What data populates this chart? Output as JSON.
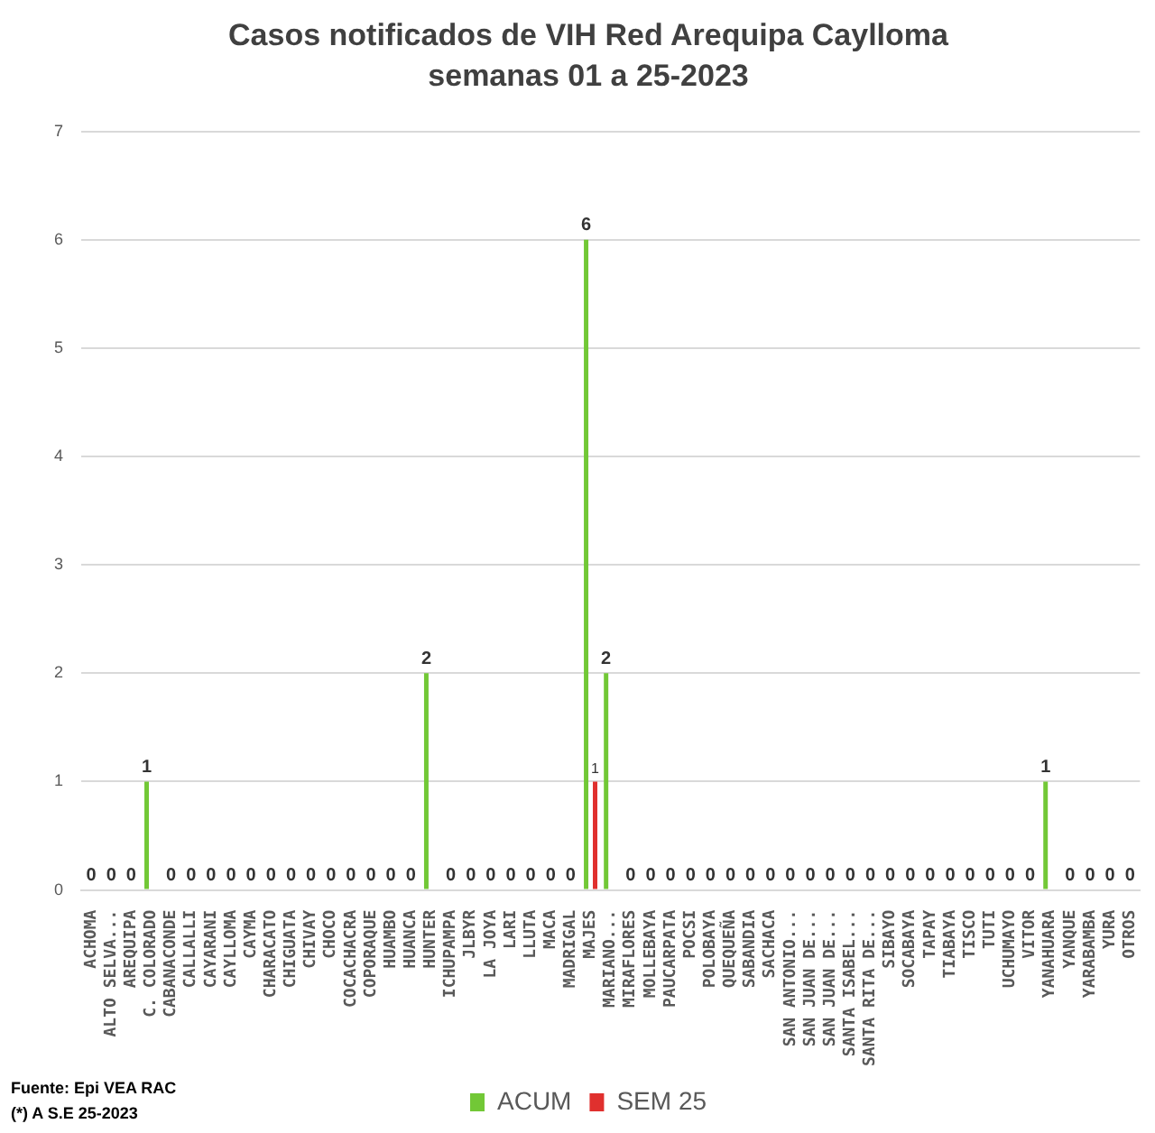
{
  "chart_data": {
    "type": "bar",
    "title": "Casos notificados de VIH Red Arequipa Caylloma",
    "subtitle": "semanas 01 a 25-2023",
    "categories": [
      "ACHOMA",
      "ALTO SELVA...",
      "AREQUIPA",
      "C. COLORADO",
      "CABANACONDE",
      "CALLALLI",
      "CAYARANI",
      "CAYLLOMA",
      "CAYMA",
      "CHARACATO",
      "CHIGUATA",
      "CHIVAY",
      "CHOCO",
      "COCACHACRA",
      "COPORAQUE",
      "HUAMBO",
      "HUANCA",
      "HUNTER",
      "ICHUPAMPA",
      "JLBYR",
      "LA JOYA",
      "LARI",
      "LLUTA",
      "MACA",
      "MADRIGAL",
      "MAJES",
      "MARIANO...",
      "MIRAFLORES",
      "MOLLEBAYA",
      "PAUCARPATA",
      "POCSI",
      "POLOBAYA",
      "QUEQUEÑA",
      "SABANDIA",
      "SACHACA",
      "SAN ANTONIO...",
      "SAN JUAN DE...",
      "SAN JUAN DE...",
      "SANTA ISABEL...",
      "SANTA RITA DE...",
      "SIBAYO",
      "SOCABAYA",
      "TAPAY",
      "TIABAYA",
      "TISCO",
      "TUTI",
      "UCHUMAYO",
      "VITOR",
      "YANAHUARA",
      "YANQUE",
      "YARABAMBA",
      "YURA",
      "OTROS"
    ],
    "series": [
      {
        "name": "ACUM",
        "color": "#72c836",
        "values": [
          0,
          0,
          0,
          1,
          0,
          0,
          0,
          0,
          0,
          0,
          0,
          0,
          0,
          0,
          0,
          0,
          0,
          2,
          0,
          0,
          0,
          0,
          0,
          0,
          0,
          6,
          2,
          0,
          0,
          0,
          0,
          0,
          0,
          0,
          0,
          0,
          0,
          0,
          0,
          0,
          0,
          0,
          0,
          0,
          0,
          0,
          0,
          0,
          1,
          0,
          0,
          0,
          0
        ],
        "value_labels": [
          "0",
          "0",
          "0",
          "1",
          "0",
          "0",
          "0",
          "0",
          "0",
          "0",
          "0",
          "0",
          "0",
          "0",
          "0",
          "0",
          "0",
          "2",
          "0",
          "0",
          "0",
          "0",
          "0",
          "0",
          "0",
          "6",
          "2",
          "0",
          "0",
          "0",
          "0",
          "0",
          "0",
          "0",
          "0",
          "0",
          "0",
          "0",
          "0",
          "0",
          "0",
          "0",
          "0",
          "0",
          "0",
          "0",
          "0",
          "0",
          "1",
          "0",
          "0",
          "0",
          "0"
        ]
      },
      {
        "name": "SEM 25",
        "color": "#e0302e",
        "values": [
          0,
          0,
          0,
          0,
          0,
          0,
          0,
          0,
          0,
          0,
          0,
          0,
          0,
          0,
          0,
          0,
          0,
          0,
          0,
          0,
          0,
          0,
          0,
          0,
          0,
          1,
          0,
          0,
          0,
          0,
          0,
          0,
          0,
          0,
          0,
          0,
          0,
          0,
          0,
          0,
          0,
          0,
          0,
          0,
          0,
          0,
          0,
          0,
          0,
          0,
          0,
          0,
          0
        ],
        "value_labels": [
          null,
          null,
          null,
          null,
          null,
          null,
          null,
          null,
          null,
          null,
          null,
          null,
          null,
          null,
          null,
          null,
          null,
          null,
          null,
          null,
          null,
          null,
          null,
          null,
          null,
          "1",
          null,
          null,
          null,
          null,
          null,
          null,
          null,
          null,
          null,
          null,
          null,
          null,
          null,
          null,
          null,
          null,
          null,
          null,
          null,
          null,
          null,
          null,
          null,
          null,
          null,
          null,
          null
        ]
      }
    ],
    "ylim": [
      0,
      7
    ],
    "yticks": [
      0,
      1,
      2,
      3,
      4,
      5,
      6,
      7
    ],
    "grid": "y",
    "legend": "bottom",
    "annotations": [
      "Fuente: Epi VEA RAC",
      "(*) A S.E 25-2023"
    ]
  }
}
